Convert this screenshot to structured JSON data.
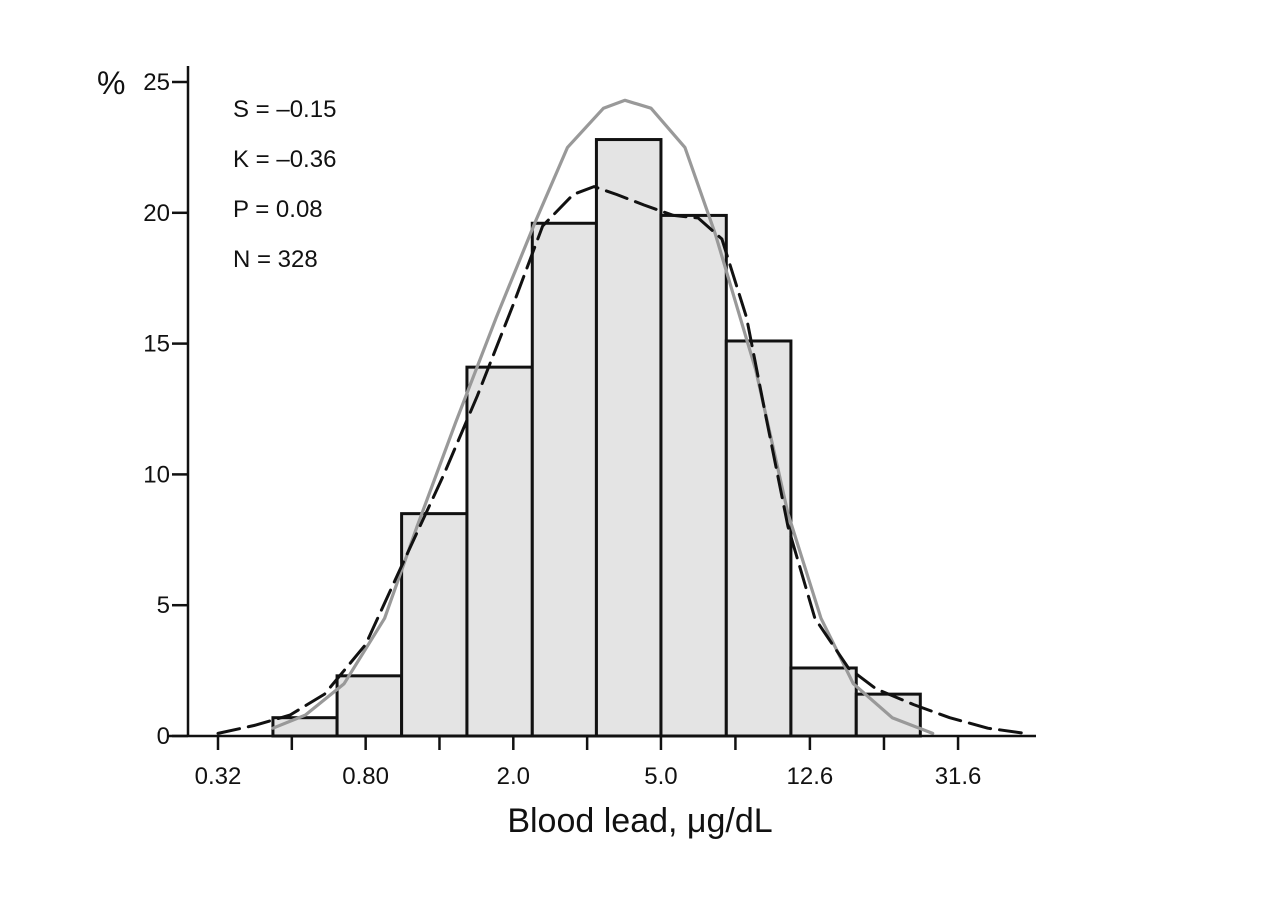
{
  "chart_data": {
    "type": "bar",
    "xlabel": "Blood lead, μg/dL",
    "ylabel": "%",
    "x_scale": "log",
    "xlim": [
      0.32,
      50
    ],
    "ylim": [
      0,
      25
    ],
    "x_ticks": [
      0.32,
      0.8,
      2.0,
      5.0,
      12.6,
      31.6
    ],
    "x_tick_labels": [
      "0.32",
      "0.80",
      "2.0",
      "5.0",
      "12.6",
      "31.6"
    ],
    "y_ticks": [
      0,
      5,
      10,
      15,
      20,
      25
    ],
    "y_tick_labels": [
      "0",
      "5",
      "10",
      "15",
      "20",
      "25"
    ],
    "bins": [
      {
        "x0": 0.45,
        "x1": 0.67,
        "value": 0.7
      },
      {
        "x0": 0.67,
        "x1": 1.0,
        "value": 2.3
      },
      {
        "x0": 1.0,
        "x1": 1.5,
        "value": 8.5
      },
      {
        "x0": 1.5,
        "x1": 2.25,
        "value": 14.1
      },
      {
        "x0": 2.25,
        "x1": 3.35,
        "value": 19.6
      },
      {
        "x0": 3.35,
        "x1": 5.0,
        "value": 22.8
      },
      {
        "x0": 5.0,
        "x1": 7.5,
        "value": 19.9
      },
      {
        "x0": 7.5,
        "x1": 11.2,
        "value": 15.1
      },
      {
        "x0": 11.2,
        "x1": 16.8,
        "value": 2.6
      },
      {
        "x0": 16.8,
        "x1": 25.0,
        "value": 1.6
      }
    ],
    "curves": [
      {
        "style": "solid",
        "color": "#999999",
        "points": [
          [
            0.45,
            0.3
          ],
          [
            0.55,
            0.8
          ],
          [
            0.7,
            2.0
          ],
          [
            0.9,
            4.5
          ],
          [
            1.1,
            8.0
          ],
          [
            1.4,
            12.0
          ],
          [
            1.8,
            16.0
          ],
          [
            2.3,
            19.7
          ],
          [
            2.8,
            22.5
          ],
          [
            3.5,
            24.0
          ],
          [
            4.0,
            24.3
          ],
          [
            4.7,
            24.0
          ],
          [
            5.8,
            22.5
          ],
          [
            7.0,
            19.2
          ],
          [
            9.0,
            14.0
          ],
          [
            11.0,
            8.5
          ],
          [
            13.5,
            4.5
          ],
          [
            16.5,
            2.0
          ],
          [
            21.0,
            0.7
          ],
          [
            27.0,
            0.1
          ]
        ]
      },
      {
        "style": "dashed",
        "color": "#111111",
        "points": [
          [
            0.32,
            0.1
          ],
          [
            0.4,
            0.4
          ],
          [
            0.5,
            0.8
          ],
          [
            0.62,
            1.6
          ],
          [
            0.8,
            3.5
          ],
          [
            1.0,
            6.5
          ],
          [
            1.3,
            10.0
          ],
          [
            1.6,
            13.0
          ],
          [
            2.0,
            16.5
          ],
          [
            2.4,
            19.5
          ],
          [
            2.9,
            20.7
          ],
          [
            3.3,
            21.0
          ],
          [
            3.8,
            20.7
          ],
          [
            4.5,
            20.3
          ],
          [
            5.4,
            19.9
          ],
          [
            6.3,
            19.8
          ],
          [
            7.3,
            19.0
          ],
          [
            8.5,
            16.0
          ],
          [
            9.5,
            12.5
          ],
          [
            11.0,
            8.0
          ],
          [
            13.0,
            4.5
          ],
          [
            16.0,
            2.6
          ],
          [
            19.0,
            1.8
          ],
          [
            24.0,
            1.2
          ],
          [
            30.0,
            0.7
          ],
          [
            38.0,
            0.3
          ],
          [
            48.0,
            0.1
          ]
        ]
      }
    ],
    "annotations": [
      "S = –0.15",
      "K = –0.36",
      "P = 0.08",
      "N = 328"
    ]
  }
}
